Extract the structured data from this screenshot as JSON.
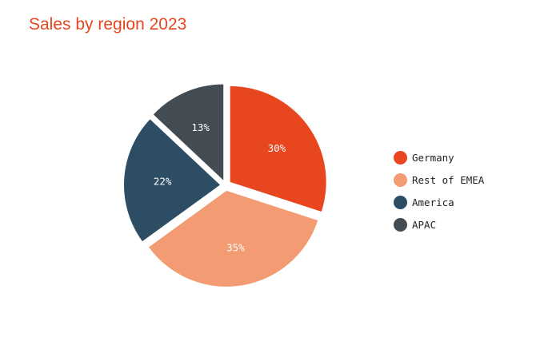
{
  "chart_data": {
    "type": "pie",
    "title": "Sales by region 2023",
    "categories": [
      "Germany",
      "Rest of EMEA",
      "America",
      "APAC"
    ],
    "values": [
      30,
      35,
      22,
      13
    ],
    "value_labels": [
      "30%",
      "35%",
      "22%",
      "13%"
    ],
    "colors": [
      "#e8461e",
      "#f39b72",
      "#2c4d63",
      "#434c53"
    ],
    "exploded": true,
    "start_angle_deg": 0,
    "direction": "clockwise",
    "legend": {
      "position": "right",
      "entries": [
        "Germany",
        "Rest of EMEA",
        "America",
        "APAC"
      ]
    }
  }
}
